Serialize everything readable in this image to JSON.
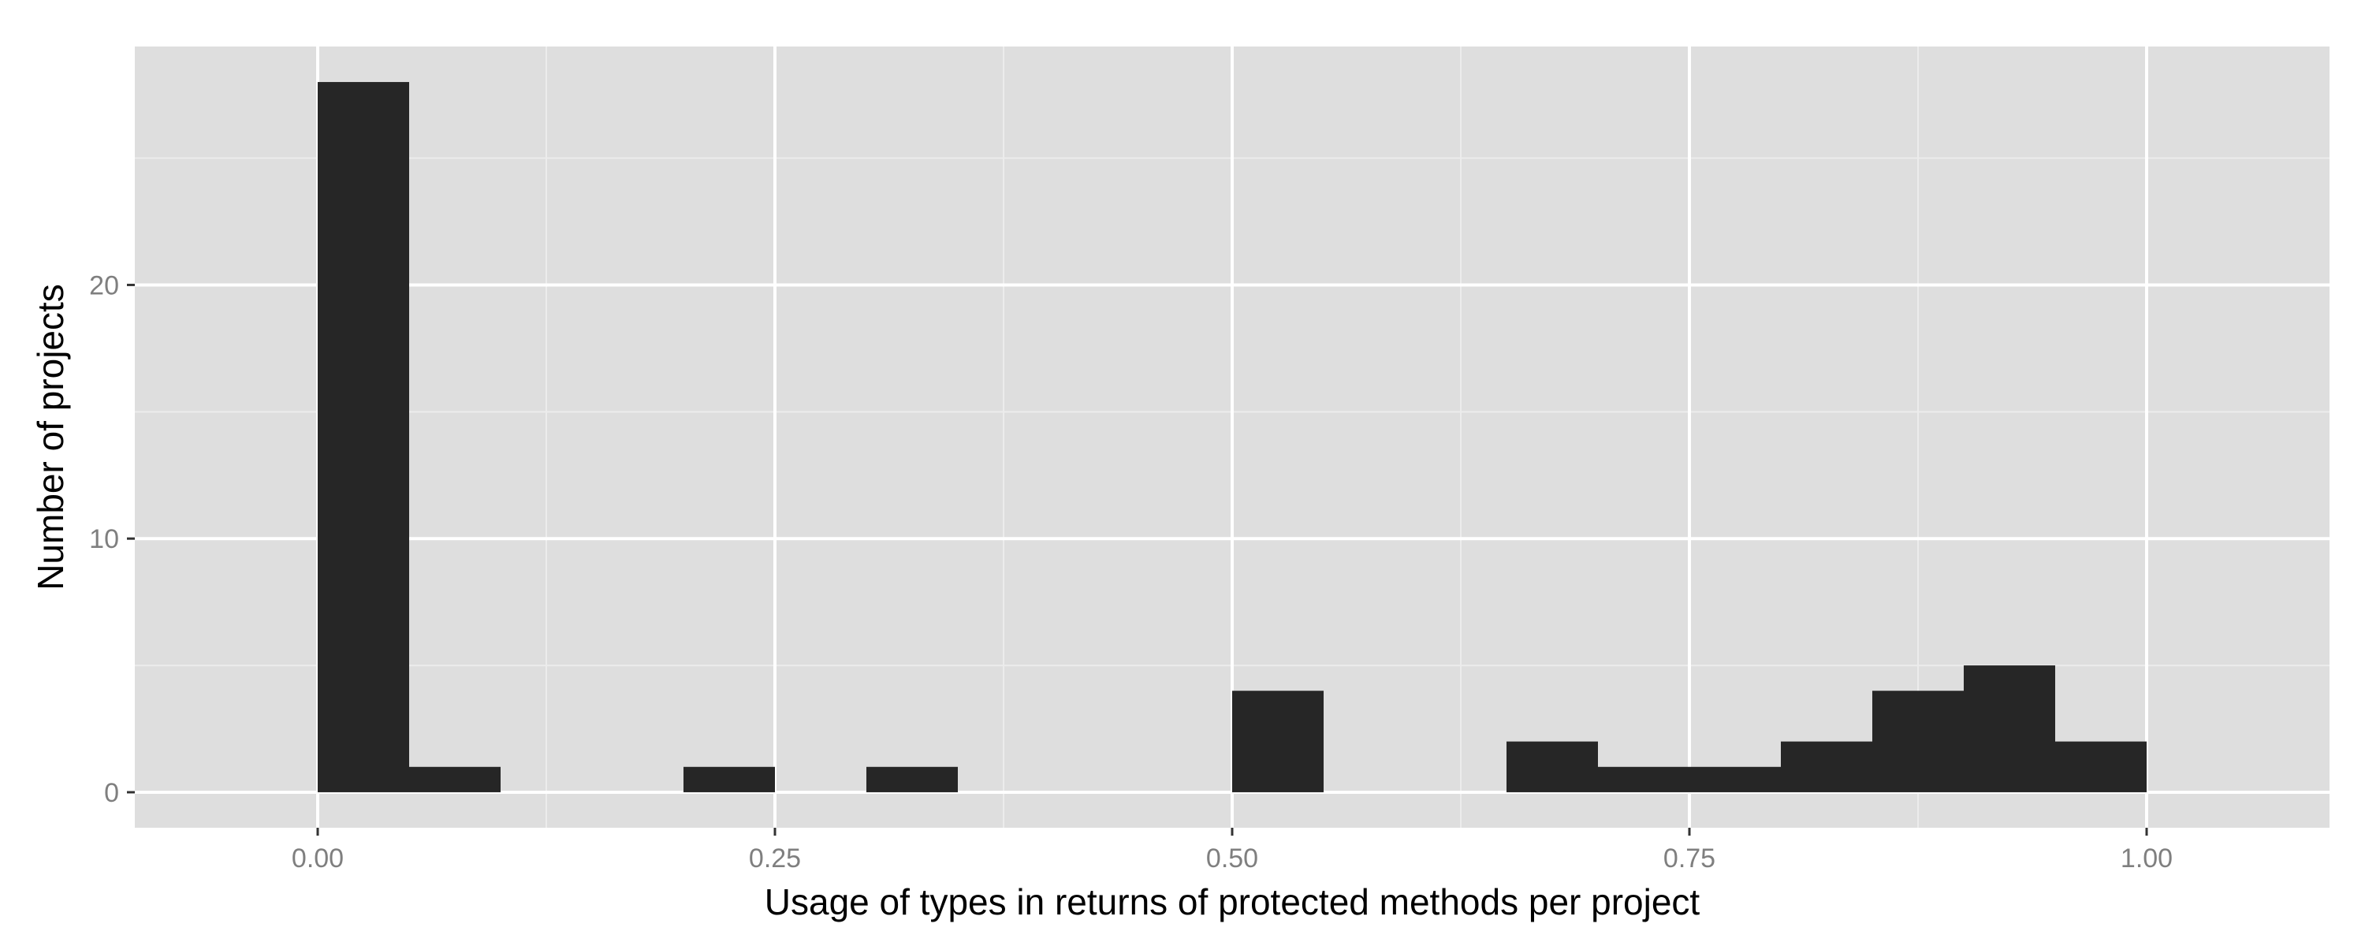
{
  "chart_data": {
    "type": "bar",
    "xlabel": "Usage of types in returns of protected methods per project",
    "ylabel": "Number of projects",
    "xlim": [
      -0.1,
      1.1
    ],
    "ylim": [
      -1.4,
      29.4
    ],
    "x_ticks": [
      0.0,
      0.25,
      0.5,
      0.75,
      1.0
    ],
    "x_tick_labels": [
      "0.00",
      "0.25",
      "0.50",
      "0.75",
      "1.00"
    ],
    "y_ticks": [
      0,
      10,
      20
    ],
    "y_tick_labels": [
      "0",
      "10",
      "20"
    ],
    "bin_width": 0.05,
    "bins": [
      {
        "x0": 0.0,
        "x1": 0.05,
        "count": 28
      },
      {
        "x0": 0.05,
        "x1": 0.1,
        "count": 1
      },
      {
        "x0": 0.2,
        "x1": 0.25,
        "count": 1
      },
      {
        "x0": 0.3,
        "x1": 0.35,
        "count": 1
      },
      {
        "x0": 0.5,
        "x1": 0.55,
        "count": 4
      },
      {
        "x0": 0.65,
        "x1": 0.7,
        "count": 2
      },
      {
        "x0": 0.7,
        "x1": 0.75,
        "count": 1
      },
      {
        "x0": 0.75,
        "x1": 0.8,
        "count": 1
      },
      {
        "x0": 0.8,
        "x1": 0.85,
        "count": 2
      },
      {
        "x0": 0.85,
        "x1": 0.9,
        "count": 4
      },
      {
        "x0": 0.9,
        "x1": 0.95,
        "count": 5
      },
      {
        "x0": 0.95,
        "x1": 1.0,
        "count": 2
      }
    ],
    "grid": true,
    "colors": {
      "panel_background": "#dedede",
      "grid_major": "#ffffff",
      "grid_minor": "#ececec",
      "bar_fill": "#262626",
      "tick_text": "#7f7f7f",
      "axis_title_text": "#000000"
    }
  }
}
